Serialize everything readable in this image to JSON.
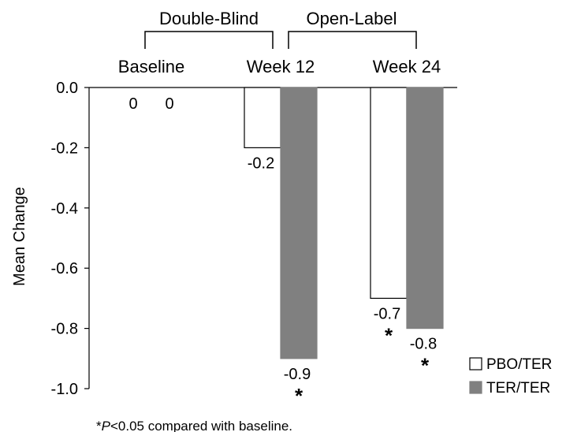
{
  "chart_data": {
    "type": "bar",
    "ylabel": "Mean Change",
    "ylim": [
      -1.0,
      0.0
    ],
    "yticks": [
      "0.0",
      "-0.2",
      "-0.4",
      "-0.6",
      "-0.8",
      "-1.0"
    ],
    "ytick_values": [
      0.0,
      -0.2,
      -0.4,
      -0.6,
      -0.8,
      -1.0
    ],
    "categories": [
      "Baseline",
      "Week 12",
      "Week 24"
    ],
    "phases": [
      "Double-Blind",
      "Open-Label"
    ],
    "series": [
      {
        "name": "PBO/TER",
        "values": [
          0,
          -0.2,
          -0.7
        ],
        "labels": [
          "0",
          "-0.2",
          "-0.7"
        ],
        "significant": [
          false,
          false,
          true
        ],
        "color": "#ffffff",
        "stroke": "#000000"
      },
      {
        "name": "TER/TER",
        "values": [
          0,
          -0.9,
          -0.8
        ],
        "labels": [
          "0",
          "-0.9",
          "-0.8"
        ],
        "significant": [
          false,
          true,
          true
        ],
        "color": "#808080",
        "stroke": "#808080"
      }
    ],
    "significance_marker": "*",
    "legend": "bottom-right",
    "grid": false
  },
  "footnote": {
    "star": "*",
    "p": "P",
    "rest": "<0.05 compared with baseline."
  }
}
